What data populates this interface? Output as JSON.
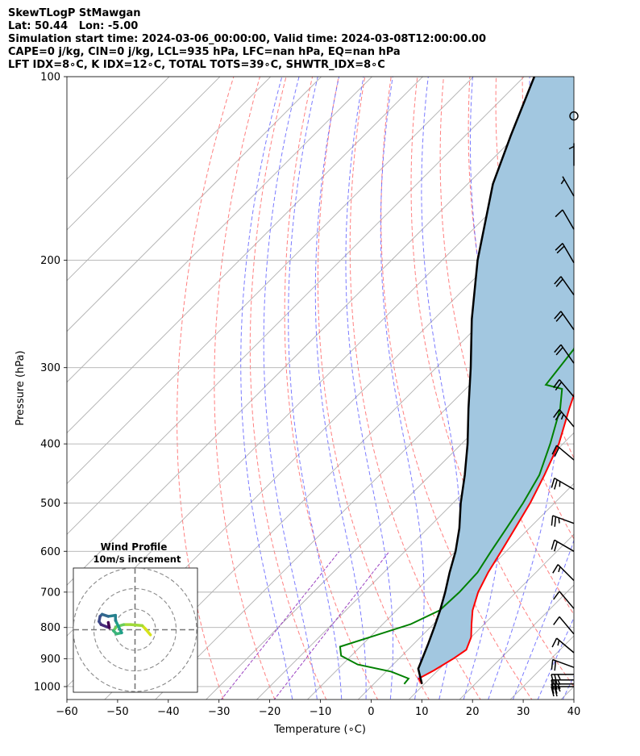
{
  "header": {
    "line1": "SkewTLogP StMawgan",
    "line2": "Lat: 50.44   Lon: -5.00",
    "line3": "Simulation start time: 2024-03-06_00:00:00, Valid time: 2024-03-08T12:00:00.00",
    "line4": "CAPE=0 j/kg, CIN=0 j/kg, LCL=935 hPa, LFC=nan hPa, EQ=nan hPa",
    "line5": "LFT IDX=8∘C, K IDX=12∘C, TOTAL TOTS=39∘C, SHWTR_IDX=8∘C"
  },
  "colors": {
    "temperature": "#ff0000",
    "dewpoint": "#008000",
    "parcel": "#000000",
    "fill": "#a2c7e0",
    "dry_adiabat": "#ff6a6a",
    "moist_adiabat": "#5a5aff",
    "mixing_ratio": "#9a40c0",
    "isotherm": "#b0b0b0"
  },
  "chart_data": {
    "type": "skewt",
    "title": "",
    "xlabel": "Temperature (∘C)",
    "ylabel": "Pressure (hPa)",
    "xlim": [
      -60,
      40
    ],
    "ylim": [
      1050,
      100
    ],
    "x_ticks": [
      -60,
      -50,
      -40,
      -30,
      -20,
      -10,
      0,
      10,
      20,
      30,
      40
    ],
    "y_ticks": [
      100,
      200,
      300,
      400,
      500,
      600,
      700,
      800,
      900,
      1000
    ],
    "y_scale": "log",
    "grid": true,
    "temperature": [
      {
        "p": 990,
        "t": 9.5
      },
      {
        "p": 970,
        "t": 7.8
      },
      {
        "p": 940,
        "t": 9.2
      },
      {
        "p": 900,
        "t": 10.7
      },
      {
        "p": 870,
        "t": 11.5
      },
      {
        "p": 830,
        "t": 10.0
      },
      {
        "p": 790,
        "t": 7.5
      },
      {
        "p": 750,
        "t": 5.0
      },
      {
        "p": 700,
        "t": 2.5
      },
      {
        "p": 650,
        "t": 0.6
      },
      {
        "p": 600,
        "t": -1.0
      },
      {
        "p": 550,
        "t": -2.8
      },
      {
        "p": 500,
        "t": -4.8
      },
      {
        "p": 450,
        "t": -7.5
      },
      {
        "p": 400,
        "t": -10.8
      },
      {
        "p": 350,
        "t": -15.7
      },
      {
        "p": 300,
        "t": -21.0
      },
      {
        "p": 250,
        "t": -27.0
      },
      {
        "p": 235,
        "t": -27.0
      },
      {
        "p": 220,
        "t": -24.0
      },
      {
        "p": 200,
        "t": -20.5
      },
      {
        "p": 180,
        "t": -17.5
      },
      {
        "p": 160,
        "t": -13.5
      },
      {
        "p": 140,
        "t": -10.0
      },
      {
        "p": 130,
        "t": -8.5
      },
      {
        "p": 120,
        "t": -7.0
      },
      {
        "p": 110,
        "t": -6.0
      },
      {
        "p": 100,
        "t": -3.5
      }
    ],
    "dewpoint": [
      {
        "p": 990,
        "t": 6.0
      },
      {
        "p": 970,
        "t": 5.8
      },
      {
        "p": 945,
        "t": 1.0
      },
      {
        "p": 920,
        "t": -7.0
      },
      {
        "p": 890,
        "t": -12.0
      },
      {
        "p": 860,
        "t": -14.0
      },
      {
        "p": 830,
        "t": -10.0
      },
      {
        "p": 790,
        "t": -4.5
      },
      {
        "p": 750,
        "t": -1.5
      },
      {
        "p": 700,
        "t": -1.2
      },
      {
        "p": 650,
        "t": -1.5
      },
      {
        "p": 600,
        "t": -3.0
      },
      {
        "p": 550,
        "t": -4.5
      },
      {
        "p": 500,
        "t": -6.2
      },
      {
        "p": 450,
        "t": -8.5
      },
      {
        "p": 400,
        "t": -12.5
      },
      {
        "p": 350,
        "t": -17.5
      },
      {
        "p": 325,
        "t": -21.0
      },
      {
        "p": 320,
        "t": -25.0
      },
      {
        "p": 280,
        "t": -26.5
      },
      {
        "p": 250,
        "t": -29.5
      },
      {
        "p": 230,
        "t": -29.5
      },
      {
        "p": 210,
        "t": -26.5
      },
      {
        "p": 200,
        "t": -26.0
      },
      {
        "p": 180,
        "t": -29.0
      },
      {
        "p": 170,
        "t": -32.0
      },
      {
        "p": 160,
        "t": -34.0
      },
      {
        "p": 150,
        "t": -34.0
      },
      {
        "p": 130,
        "t": -34.0
      },
      {
        "p": 115,
        "t": -34.5
      },
      {
        "p": 100,
        "t": -35.0
      }
    ],
    "parcel": [
      {
        "p": 990,
        "t": 9.5
      },
      {
        "p": 960,
        "t": 7.5
      },
      {
        "p": 935,
        "t": 5.8
      },
      {
        "p": 900,
        "t": 4.6
      },
      {
        "p": 850,
        "t": 2.8
      },
      {
        "p": 800,
        "t": 0.8
      },
      {
        "p": 750,
        "t": -1.4
      },
      {
        "p": 700,
        "t": -4.0
      },
      {
        "p": 650,
        "t": -7.0
      },
      {
        "p": 600,
        "t": -10.0
      },
      {
        "p": 550,
        "t": -13.8
      },
      {
        "p": 500,
        "t": -18.5
      },
      {
        "p": 450,
        "t": -23.2
      },
      {
        "p": 400,
        "t": -28.8
      },
      {
        "p": 350,
        "t": -35.6
      },
      {
        "p": 300,
        "t": -43.2
      },
      {
        "p": 250,
        "t": -52.5
      },
      {
        "p": 200,
        "t": -63.0
      },
      {
        "p": 150,
        "t": -75.0
      },
      {
        "p": 125,
        "t": -81.0
      },
      {
        "p": 100,
        "t": -88.0
      }
    ],
    "winds": [
      {
        "p": 1000,
        "speed_kt": 25,
        "dir_deg": 270
      },
      {
        "p": 990,
        "speed_kt": 25,
        "dir_deg": 270
      },
      {
        "p": 975,
        "speed_kt": 25,
        "dir_deg": 270
      },
      {
        "p": 955,
        "speed_kt": 25,
        "dir_deg": 270
      },
      {
        "p": 930,
        "speed_kt": 20,
        "dir_deg": 290
      },
      {
        "p": 880,
        "speed_kt": 15,
        "dir_deg": 310
      },
      {
        "p": 820,
        "speed_kt": 10,
        "dir_deg": 320
      },
      {
        "p": 745,
        "speed_kt": 10,
        "dir_deg": 320
      },
      {
        "p": 670,
        "speed_kt": 15,
        "dir_deg": 315
      },
      {
        "p": 600,
        "speed_kt": 20,
        "dir_deg": 300
      },
      {
        "p": 540,
        "speed_kt": 25,
        "dir_deg": 290
      },
      {
        "p": 475,
        "speed_kt": 25,
        "dir_deg": 300
      },
      {
        "p": 425,
        "speed_kt": 20,
        "dir_deg": 310
      },
      {
        "p": 375,
        "speed_kt": 25,
        "dir_deg": 320
      },
      {
        "p": 335,
        "speed_kt": 20,
        "dir_deg": 320
      },
      {
        "p": 295,
        "speed_kt": 20,
        "dir_deg": 325
      },
      {
        "p": 260,
        "speed_kt": 20,
        "dir_deg": 325
      },
      {
        "p": 228,
        "speed_kt": 20,
        "dir_deg": 325
      },
      {
        "p": 202,
        "speed_kt": 20,
        "dir_deg": 330
      },
      {
        "p": 178,
        "speed_kt": 10,
        "dir_deg": 330
      },
      {
        "p": 157,
        "speed_kt": 5,
        "dir_deg": 330
      },
      {
        "p": 140,
        "speed_kt": 5,
        "dir_deg": 0
      },
      {
        "p": 116,
        "speed_kt": 0,
        "dir_deg": 0
      }
    ],
    "hodograph": {
      "title": "Wind Profile",
      "subtitle": "10m/s increment",
      "ring_step_ms": 10,
      "rings": 3,
      "points": [
        {
          "u": 7.5,
          "v": -2.5
        },
        {
          "u": 5.0,
          "v": 0.5
        },
        {
          "u": 3.5,
          "v": 2.0
        },
        {
          "u": -2.0,
          "v": 2.5
        },
        {
          "u": -5.5,
          "v": 2.5
        },
        {
          "u": -9.0,
          "v": 1.5
        },
        {
          "u": -10.5,
          "v": -0.5
        },
        {
          "u": -9.0,
          "v": -2.0
        },
        {
          "u": -6.5,
          "v": -1.5
        },
        {
          "u": -9.5,
          "v": 4.5
        },
        {
          "u": -9.5,
          "v": 7.0
        },
        {
          "u": -13.0,
          "v": 6.5
        },
        {
          "u": -16.0,
          "v": 7.5
        },
        {
          "u": -17.0,
          "v": 6.5
        },
        {
          "u": -17.5,
          "v": 4.0
        },
        {
          "u": -16.5,
          "v": 2.5
        },
        {
          "u": -14.0,
          "v": 1.5
        },
        {
          "u": -12.5,
          "v": 1.0
        },
        {
          "u": -13.0,
          "v": 3.5
        }
      ]
    }
  }
}
